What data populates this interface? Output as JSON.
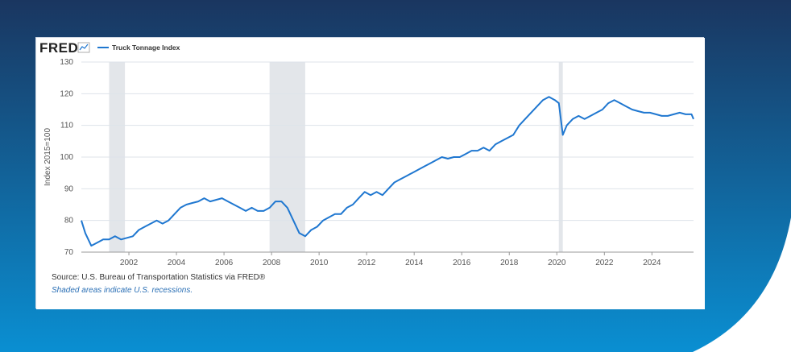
{
  "colors": {
    "bg_dark": "#1a3660",
    "bg_light": "#0a8fd2",
    "series": "#1f77d0",
    "recession_shade": "#e3e6ea",
    "grid": "#dde3ea"
  },
  "logo": {
    "text": "FRED",
    "icon": "chart-line-icon"
  },
  "legend": {
    "series_name": "Truck Tonnage Index"
  },
  "source": "Source: U.S. Bureau of Transportation Statistics via FRED®",
  "recession_note": "Shaded areas indicate U.S. recessions.",
  "chart_data": {
    "type": "line",
    "title": "",
    "xlabel": "",
    "ylabel": "Index 2015=100",
    "ylim": [
      70,
      130
    ],
    "yticks": [
      70,
      80,
      90,
      100,
      110,
      120,
      130
    ],
    "xlim": [
      "2000-01",
      "2025-10"
    ],
    "xticks": [
      "2002",
      "2004",
      "2006",
      "2008",
      "2010",
      "2012",
      "2014",
      "2016",
      "2018",
      "2020",
      "2022",
      "2024"
    ],
    "grid": true,
    "legend_position": "top-left",
    "recessions": [
      {
        "start": "2001-03",
        "end": "2001-11"
      },
      {
        "start": "2007-12",
        "end": "2009-06"
      },
      {
        "start": "2020-02",
        "end": "2020-04"
      }
    ],
    "series": [
      {
        "name": "Truck Tonnage Index",
        "points": [
          [
            "2000-01",
            80
          ],
          [
            "2000-03",
            76
          ],
          [
            "2000-06",
            72
          ],
          [
            "2000-09",
            73
          ],
          [
            "2000-12",
            74
          ],
          [
            "2001-03",
            74
          ],
          [
            "2001-06",
            75
          ],
          [
            "2001-09",
            74
          ],
          [
            "2001-12",
            74.5
          ],
          [
            "2002-03",
            75
          ],
          [
            "2002-06",
            77
          ],
          [
            "2002-09",
            78
          ],
          [
            "2002-12",
            79
          ],
          [
            "2003-03",
            80
          ],
          [
            "2003-06",
            79
          ],
          [
            "2003-09",
            80
          ],
          [
            "2003-12",
            82
          ],
          [
            "2004-03",
            84
          ],
          [
            "2004-06",
            85
          ],
          [
            "2004-09",
            85.5
          ],
          [
            "2004-12",
            86
          ],
          [
            "2005-03",
            87
          ],
          [
            "2005-06",
            86
          ],
          [
            "2005-09",
            86.5
          ],
          [
            "2005-12",
            87
          ],
          [
            "2006-03",
            86
          ],
          [
            "2006-06",
            85
          ],
          [
            "2006-09",
            84
          ],
          [
            "2006-12",
            83
          ],
          [
            "2007-03",
            84
          ],
          [
            "2007-06",
            83
          ],
          [
            "2007-09",
            83
          ],
          [
            "2007-12",
            84
          ],
          [
            "2008-03",
            86
          ],
          [
            "2008-06",
            86
          ],
          [
            "2008-09",
            84
          ],
          [
            "2008-12",
            80
          ],
          [
            "2009-03",
            76
          ],
          [
            "2009-06",
            75
          ],
          [
            "2009-09",
            77
          ],
          [
            "2009-12",
            78
          ],
          [
            "2010-03",
            80
          ],
          [
            "2010-06",
            81
          ],
          [
            "2010-09",
            82
          ],
          [
            "2010-12",
            82
          ],
          [
            "2011-03",
            84
          ],
          [
            "2011-06",
            85
          ],
          [
            "2011-09",
            87
          ],
          [
            "2011-12",
            89
          ],
          [
            "2012-03",
            88
          ],
          [
            "2012-06",
            89
          ],
          [
            "2012-09",
            88
          ],
          [
            "2012-12",
            90
          ],
          [
            "2013-03",
            92
          ],
          [
            "2013-06",
            93
          ],
          [
            "2013-09",
            94
          ],
          [
            "2013-12",
            95
          ],
          [
            "2014-03",
            96
          ],
          [
            "2014-06",
            97
          ],
          [
            "2014-09",
            98
          ],
          [
            "2014-12",
            99
          ],
          [
            "2015-03",
            100
          ],
          [
            "2015-06",
            99.5
          ],
          [
            "2015-09",
            100
          ],
          [
            "2015-12",
            100
          ],
          [
            "2016-03",
            101
          ],
          [
            "2016-06",
            102
          ],
          [
            "2016-09",
            102
          ],
          [
            "2016-12",
            103
          ],
          [
            "2017-03",
            102
          ],
          [
            "2017-06",
            104
          ],
          [
            "2017-09",
            105
          ],
          [
            "2017-12",
            106
          ],
          [
            "2018-03",
            107
          ],
          [
            "2018-06",
            110
          ],
          [
            "2018-09",
            112
          ],
          [
            "2018-12",
            114
          ],
          [
            "2019-03",
            116
          ],
          [
            "2019-06",
            118
          ],
          [
            "2019-09",
            119
          ],
          [
            "2019-12",
            118
          ],
          [
            "2020-02",
            117
          ],
          [
            "2020-04",
            107
          ],
          [
            "2020-06",
            110
          ],
          [
            "2020-09",
            112
          ],
          [
            "2020-12",
            113
          ],
          [
            "2021-03",
            112
          ],
          [
            "2021-06",
            113
          ],
          [
            "2021-09",
            114
          ],
          [
            "2021-12",
            115
          ],
          [
            "2022-03",
            117
          ],
          [
            "2022-06",
            118
          ],
          [
            "2022-09",
            117
          ],
          [
            "2022-12",
            116
          ],
          [
            "2023-03",
            115
          ],
          [
            "2023-06",
            114.5
          ],
          [
            "2023-09",
            114
          ],
          [
            "2023-12",
            114
          ],
          [
            "2024-03",
            113.5
          ],
          [
            "2024-06",
            113
          ],
          [
            "2024-09",
            113
          ],
          [
            "2024-12",
            113.5
          ],
          [
            "2025-03",
            114
          ],
          [
            "2025-06",
            113.5
          ],
          [
            "2025-09",
            113.5
          ],
          [
            "2025-10",
            112
          ]
        ]
      }
    ]
  }
}
